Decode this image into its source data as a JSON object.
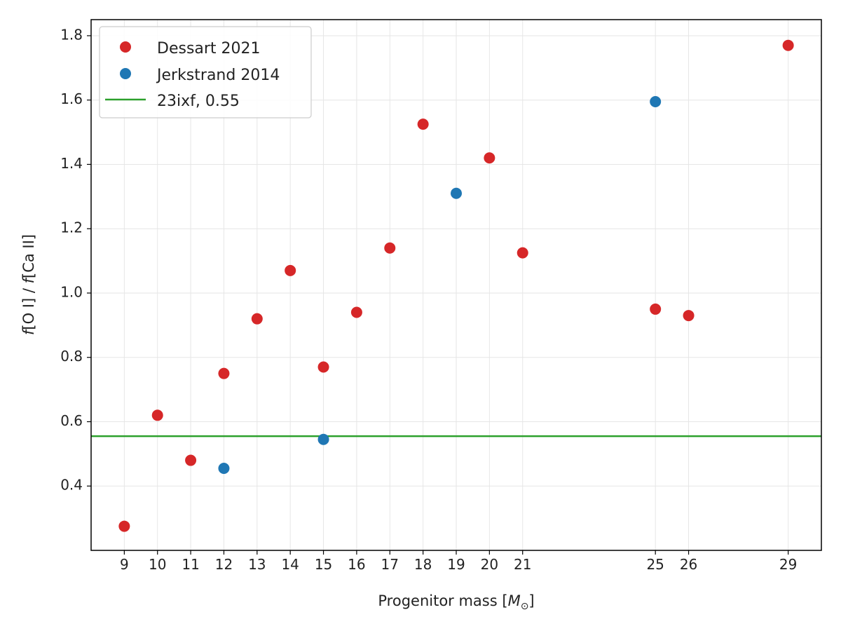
{
  "chart_data": {
    "type": "scatter",
    "xlabel": {
      "main": "Progenitor mass [",
      "sym": "M",
      "sub": "⊙",
      "close": "]"
    },
    "ylabel": {
      "f1": "f",
      "t1": "[O I] / ",
      "f2": "f",
      "t2": "[Ca II]"
    },
    "xlim": [
      8,
      30
    ],
    "ylim": [
      0.2,
      1.85
    ],
    "x_ticks": [
      9,
      10,
      11,
      12,
      13,
      14,
      15,
      16,
      17,
      18,
      19,
      20,
      21,
      25,
      26,
      29
    ],
    "y_ticks": [
      0.4,
      0.6,
      0.8,
      1.0,
      1.2,
      1.4,
      1.6,
      1.8
    ],
    "y_tick_labels": [
      "0.4",
      "0.6",
      "0.8",
      "1.0",
      "1.2",
      "1.4",
      "1.6",
      "1.8"
    ],
    "grid": true,
    "legend_position": "top-left",
    "series": [
      {
        "name": "Dessart 2021",
        "kind": "scatter",
        "color": "#d62728",
        "points": [
          {
            "x": 9,
            "y": 0.275
          },
          {
            "x": 10,
            "y": 0.62
          },
          {
            "x": 11,
            "y": 0.48
          },
          {
            "x": 12,
            "y": 0.75
          },
          {
            "x": 13,
            "y": 0.92
          },
          {
            "x": 14,
            "y": 1.07
          },
          {
            "x": 15,
            "y": 0.77
          },
          {
            "x": 16,
            "y": 0.94
          },
          {
            "x": 17,
            "y": 1.14
          },
          {
            "x": 18,
            "y": 1.525
          },
          {
            "x": 20,
            "y": 1.42
          },
          {
            "x": 21,
            "y": 1.125
          },
          {
            "x": 25,
            "y": 0.95
          },
          {
            "x": 26,
            "y": 0.93
          },
          {
            "x": 29,
            "y": 1.77
          }
        ]
      },
      {
        "name": "Jerkstrand 2014",
        "kind": "scatter",
        "color": "#1f77b4",
        "points": [
          {
            "x": 12,
            "y": 0.455
          },
          {
            "x": 15,
            "y": 0.545
          },
          {
            "x": 19,
            "y": 1.31
          },
          {
            "x": 25,
            "y": 1.595
          }
        ]
      },
      {
        "name": "23ixf, 0.55",
        "kind": "hline",
        "color": "#2ca02c",
        "y": 0.555
      }
    ]
  }
}
